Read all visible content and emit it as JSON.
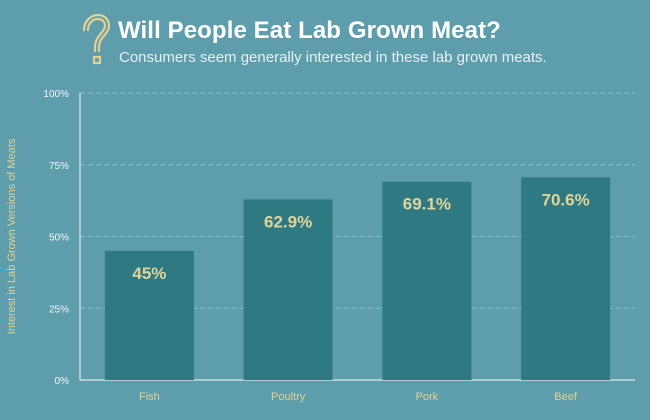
{
  "header": {
    "title": "Will People Eat Lab Grown Meat?",
    "subtitle": "Consumers seem generally interested in these lab grown meats.",
    "icon": "question-mark-icon"
  },
  "colors": {
    "background": "#5e9eac",
    "bar": "#2f7a82",
    "value_label": "#e1d49a",
    "axis_label": "#e3d191",
    "gridline": "#8bc1c9",
    "axis_line": "#dfe8ea"
  },
  "chart_data": {
    "type": "bar",
    "title": "Will People Eat Lab Grown Meat?",
    "subtitle": "Consumers seem generally interested in these lab grown meats.",
    "categories": [
      "Fish",
      "Poultry",
      "Pork",
      "Beef"
    ],
    "values": [
      45,
      62.9,
      69.1,
      70.6
    ],
    "value_labels": [
      "45%",
      "62.9%",
      "69.1%",
      "70.6%"
    ],
    "ylabel": "Interest in Lab Grown Versions of Meats",
    "xlabel": "",
    "ylim": [
      0,
      100
    ],
    "yticks": [
      0,
      25,
      50,
      75,
      100
    ],
    "ytick_labels": [
      "0%",
      "25%",
      "50%",
      "75%",
      "100%"
    ],
    "grid": true,
    "legend": "none"
  }
}
